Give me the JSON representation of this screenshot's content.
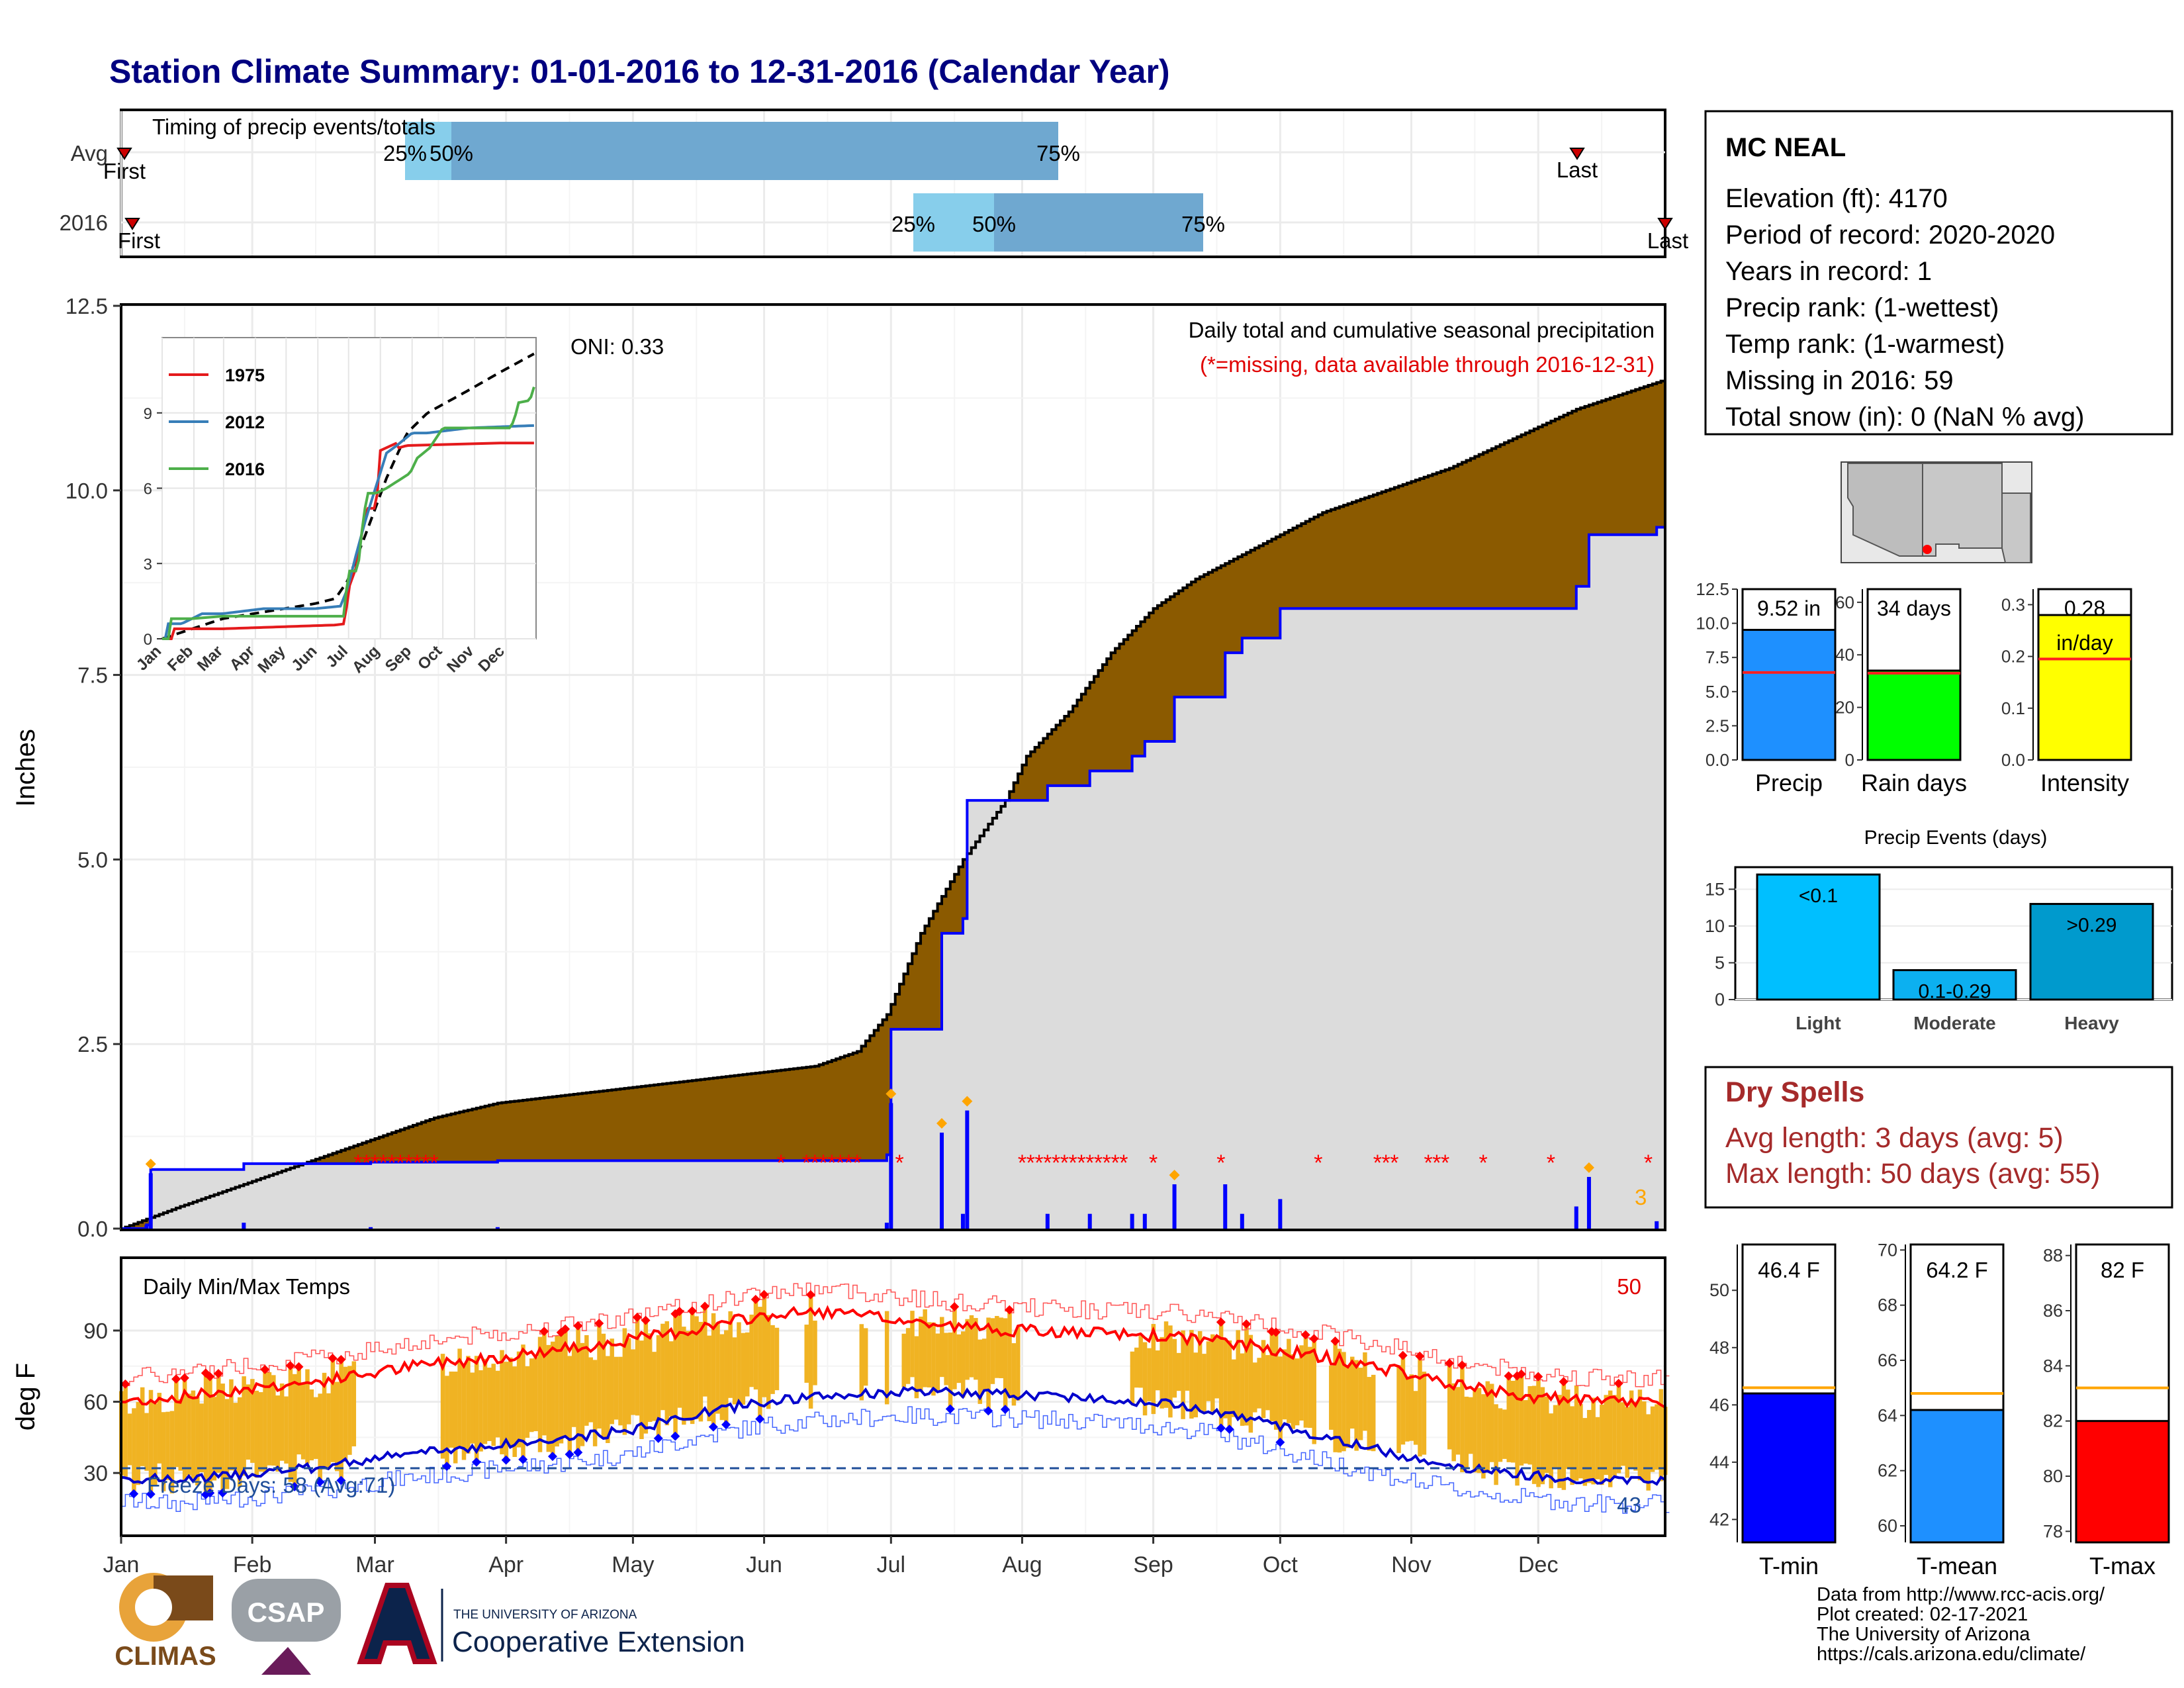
{
  "title": "Station Climate Summary: 01-01-2016 to 12-31-2016 (Calendar Year)",
  "timing_panel": {
    "label": "Timing of precip events/totals",
    "rows": [
      "Avg",
      "2016"
    ],
    "avg": {
      "first_label": "First",
      "last_label": "Last",
      "p25": "25%",
      "p50": "50%",
      "p75": "75%"
    },
    "y2016": {
      "first_label": "First",
      "last_label": "Last",
      "p25": "25%",
      "p50": "50%",
      "p75": "75%"
    }
  },
  "precip_panel": {
    "ylabel": "Inches",
    "y_ticks": [
      "0.0",
      "2.5",
      "5.0",
      "7.5",
      "10.0",
      "12.5"
    ],
    "oni": "ONI: 0.33",
    "caption1": "Daily total and cumulative seasonal precipitation",
    "caption2": "(*=missing, data available through 2016-12-31)",
    "event_count_label": "3"
  },
  "inset": {
    "y_ticks": [
      "0",
      "3",
      "6",
      "9"
    ],
    "x_ticks": [
      "Jan",
      "Feb",
      "Mar",
      "Apr",
      "May",
      "Jun",
      "Jul",
      "Aug",
      "Sep",
      "Oct",
      "Nov",
      "Dec"
    ],
    "legend": [
      {
        "name": "1975",
        "color": "#e41a1c"
      },
      {
        "name": "2012",
        "color": "#377eb8"
      },
      {
        "name": "2016",
        "color": "#4daf4a"
      }
    ]
  },
  "temp_panel": {
    "ylabel": "deg F",
    "label": "Daily Min/Max Temps",
    "y_ticks": [
      "30",
      "60",
      "90"
    ],
    "freeze_days": "Freeze Days: 58 (Avg:71)",
    "hot_days_count": "50",
    "cold_days_count": "43"
  },
  "x_months": [
    "Jan",
    "Feb",
    "Mar",
    "Apr",
    "May",
    "Jun",
    "Jul",
    "Aug",
    "Sep",
    "Oct",
    "Nov",
    "Dec"
  ],
  "station_box": {
    "name": "MC NEAL",
    "lines": [
      "Elevation (ft): 4170",
      "Period of record: 2020-2020",
      "Years in record: 1",
      "Precip rank:  (1-wettest)",
      "Temp rank:  (1-warmest)",
      "Missing in 2016: 59",
      "Total snow (in): 0 (NaN % avg)"
    ]
  },
  "summary_bars": [
    {
      "label": "Precip",
      "value_label": "9.52 in",
      "value": 9.52,
      "avg": 6.4,
      "ticks": [
        "0.0",
        "2.5",
        "5.0",
        "7.5",
        "10.0",
        "12.5"
      ],
      "color": "#1e90ff"
    },
    {
      "label": "Rain days",
      "value_label": "34 days",
      "value": 34,
      "avg": 33,
      "ticks": [
        "0",
        "20",
        "40",
        "60"
      ],
      "color": "#00ff00"
    },
    {
      "label": "Intensity",
      "value_label": "0.28",
      "value_label2": "in/day",
      "value": 0.28,
      "avg": 0.195,
      "ticks": [
        "0.0",
        "0.1",
        "0.2",
        "0.3"
      ],
      "color": "#ffff00"
    }
  ],
  "precip_events": {
    "title": "Precip Events (days)",
    "ticks": [
      "0",
      "5",
      "10",
      "15"
    ],
    "bars": [
      {
        "category": "Light",
        "label": "<0.1",
        "value": 17,
        "color": "#00bfff"
      },
      {
        "category": "Moderate",
        "label": "0.1-0.29",
        "value": 4,
        "color": "#0cb0f0"
      },
      {
        "category": "Heavy",
        "label": ">0.29",
        "value": 13,
        "color": "#009acd"
      }
    ]
  },
  "dry_spells": {
    "title": "Dry Spells",
    "line1": "Avg length: 3 days (avg: 5)",
    "line2": "Max length: 50 days (avg: 55)"
  },
  "temp_bars": [
    {
      "label": "T-min",
      "value_label": "46.4 F",
      "value": 46.4,
      "avg": 46.6,
      "min": 41.2,
      "max": 51.6,
      "ticks": [
        "42",
        "44",
        "46",
        "48",
        "50"
      ],
      "color": "#0000ff"
    },
    {
      "label": "T-mean",
      "value_label": "64.2 F",
      "value": 64.2,
      "avg": 64.8,
      "min": 59.4,
      "max": 70.2,
      "ticks": [
        "60",
        "62",
        "64",
        "66",
        "68",
        "70"
      ],
      "color": "#1e90ff"
    },
    {
      "label": "T-max",
      "value_label": "82 F",
      "value": 82.0,
      "avg": 83.2,
      "min": 77.6,
      "max": 88.4,
      "ticks": [
        "78",
        "80",
        "82",
        "84",
        "86",
        "88"
      ],
      "color": "#ff0000"
    }
  ],
  "footer": {
    "line1": "Data from http://www.rcc-acis.org/",
    "line2": "Plot created: 02-17-2021",
    "line3": "The University of Arizona",
    "line4": "https://cals.arizona.edu/climate/"
  },
  "logos": {
    "climas": "CLIMAS",
    "csap": "CSAP",
    "ua_small": "THE UNIVERSITY OF ARIZONA",
    "ua_big": "Cooperative Extension"
  },
  "chart_data": [
    {
      "type": "area",
      "title": "Daily total and cumulative seasonal precipitation",
      "ylabel": "Inches",
      "ylim": [
        0,
        12.5
      ],
      "x_units": "day of year 2016",
      "series": [
        {
          "name": "Avg",
          "x": [
            1,
            15,
            30,
            45,
            60,
            75,
            90,
            105,
            120,
            135,
            150,
            165,
            175,
            182,
            190,
            200,
            210,
            215,
            225,
            235,
            245,
            255,
            265,
            275,
            285,
            300,
            315,
            330,
            345,
            366
          ],
          "values": [
            0,
            0.3,
            0.6,
            0.9,
            1.2,
            1.5,
            1.7,
            1.8,
            1.9,
            2.0,
            2.1,
            2.2,
            2.4,
            2.9,
            4.0,
            5.0,
            5.8,
            6.4,
            7.0,
            7.8,
            8.4,
            8.8,
            9.1,
            9.4,
            9.7,
            10.0,
            10.3,
            10.7,
            11.1,
            11.5
          ]
        },
        {
          "name": "2016",
          "x": [
            1,
            7,
            8,
            30,
            45,
            60,
            90,
            120,
            150,
            178,
            182,
            183,
            192,
            195,
            200,
            201,
            210,
            220,
            230,
            240,
            243,
            250,
            262,
            266,
            275,
            320,
            340,
            345,
            348,
            362,
            364,
            366
          ],
          "values": [
            0,
            0.05,
            0.8,
            0.88,
            0.88,
            0.9,
            0.92,
            0.92,
            0.92,
            0.92,
            1.0,
            2.7,
            2.7,
            4.0,
            4.2,
            5.8,
            5.8,
            6.0,
            6.2,
            6.4,
            6.6,
            7.2,
            7.8,
            8.0,
            8.4,
            8.4,
            8.4,
            8.7,
            9.4,
            9.4,
            9.5,
            9.5
          ]
        }
      ]
    },
    {
      "type": "line",
      "title": "Daily Min/Max Temps",
      "ylabel": "deg F",
      "x": [
        1,
        15,
        32,
        46,
        60,
        74,
        91,
        105,
        121,
        135,
        152,
        166,
        182,
        196,
        213,
        227,
        244,
        258,
        274,
        288,
        305,
        319,
        335,
        349,
        366
      ],
      "series": [
        {
          "name": "Avg max",
          "values": [
            60,
            62,
            66,
            68,
            72,
            76,
            79,
            82,
            86,
            90,
            96,
            98,
            95,
            92,
            90,
            89,
            88,
            86,
            82,
            78,
            72,
            66,
            62,
            60,
            60
          ]
        },
        {
          "name": "Avg min",
          "values": [
            28,
            27,
            30,
            32,
            36,
            39,
            42,
            44,
            48,
            54,
            60,
            62,
            64,
            64,
            63,
            62,
            60,
            57,
            50,
            44,
            37,
            32,
            29,
            27,
            27
          ]
        }
      ]
    },
    {
      "type": "bar",
      "categories": [
        "Precip"
      ],
      "values": [
        9.52
      ],
      "ylim": [
        0,
        12.5
      ]
    },
    {
      "type": "bar",
      "categories": [
        "Rain days"
      ],
      "values": [
        34
      ],
      "ylim": [
        0,
        65
      ]
    },
    {
      "type": "bar",
      "categories": [
        "Intensity"
      ],
      "values": [
        0.28
      ],
      "ylim": [
        0,
        0.33
      ]
    },
    {
      "type": "bar",
      "title": "Precip Events (days)",
      "categories": [
        "Light",
        "Moderate",
        "Heavy"
      ],
      "values": [
        17,
        4,
        13
      ],
      "ylim": [
        0,
        18
      ]
    },
    {
      "type": "bar",
      "categories": [
        "T-min"
      ],
      "values": [
        46.4
      ]
    },
    {
      "type": "bar",
      "categories": [
        "T-mean"
      ],
      "values": [
        64.2
      ]
    },
    {
      "type": "bar",
      "categories": [
        "T-max"
      ],
      "values": [
        82
      ]
    }
  ]
}
